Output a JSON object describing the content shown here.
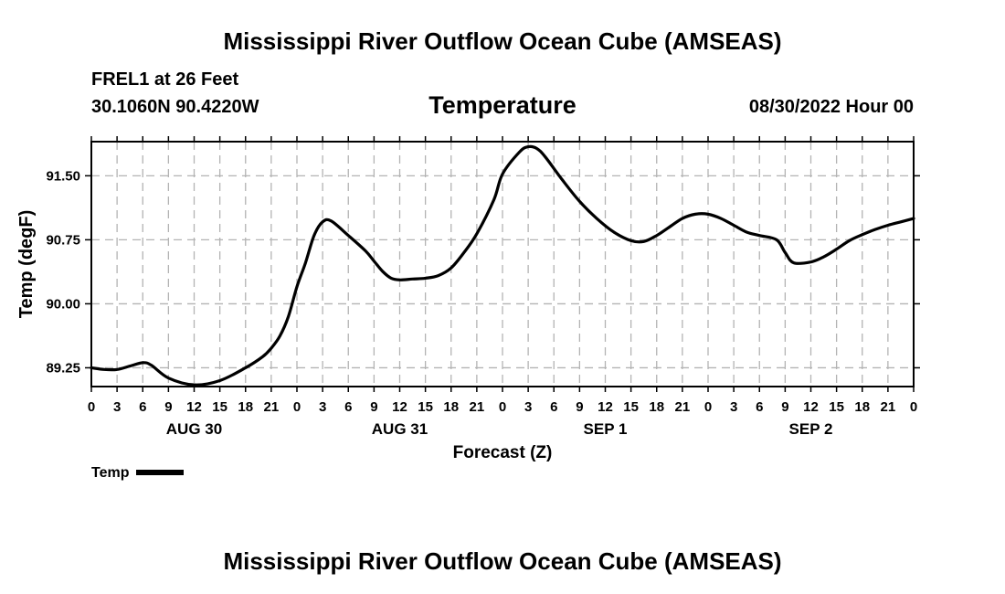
{
  "header": {
    "title": "Mississippi River Outflow Ocean Cube (AMSEAS)",
    "station": "FREL1 at 26 Feet",
    "coords": "30.1060N  90.4220W",
    "subtitle": "Temperature",
    "datetime": "08/30/2022 Hour 00"
  },
  "footer": {
    "title": "Mississippi River Outflow Ocean Cube (AMSEAS)"
  },
  "legend": {
    "label": "Temp"
  },
  "chart_data": {
    "type": "line",
    "title": "Temperature",
    "xlabel": "Forecast (Z)",
    "ylabel": "Temp (degF)",
    "xlim": [
      0,
      96
    ],
    "ylim": [
      89.03,
      91.9
    ],
    "y_ticks": [
      89.25,
      90.0,
      90.75,
      91.5
    ],
    "y_tick_labels": [
      "89.25",
      "90.00",
      "90.75",
      "91.50"
    ],
    "x_ticks": [
      0,
      3,
      6,
      9,
      12,
      15,
      18,
      21,
      24,
      27,
      30,
      33,
      36,
      39,
      42,
      45,
      48,
      51,
      54,
      57,
      60,
      63,
      66,
      69,
      72,
      75,
      78,
      81,
      84,
      87,
      90,
      93,
      96
    ],
    "x_tick_labels": [
      "0",
      "3",
      "6",
      "9",
      "12",
      "15",
      "18",
      "21",
      "0",
      "3",
      "6",
      "9",
      "12",
      "15",
      "18",
      "21",
      "0",
      "3",
      "6",
      "9",
      "12",
      "15",
      "18",
      "21",
      "0",
      "3",
      "6",
      "9",
      "12",
      "15",
      "18",
      "21",
      "0"
    ],
    "day_labels": [
      {
        "label": "AUG 30",
        "hour": 12
      },
      {
        "label": "AUG 31",
        "hour": 36
      },
      {
        "label": "SEP 1",
        "hour": 60
      },
      {
        "label": "SEP 2",
        "hour": 84
      }
    ],
    "grid": true,
    "series": [
      {
        "name": "Temp",
        "color": "#000000",
        "x": [
          0,
          1.5,
          3,
          4.5,
          6,
          7,
          9,
          12,
          15,
          18,
          20,
          21,
          22,
          23,
          24,
          25,
          26,
          27,
          28,
          30,
          32,
          33,
          34,
          35,
          36,
          37.5,
          39,
          40.5,
          42,
          43.5,
          45,
          47,
          48,
          50,
          51,
          52,
          53,
          55,
          57,
          59,
          61,
          63,
          64.5,
          66,
          67.5,
          69,
          70.5,
          72,
          73.5,
          75,
          76.5,
          78,
          80,
          81,
          82,
          84,
          85.5,
          87,
          88.5,
          90,
          91.5,
          93,
          94.5,
          96
        ],
        "values": [
          89.25,
          89.23,
          89.23,
          89.27,
          89.31,
          89.28,
          89.13,
          89.05,
          89.1,
          89.25,
          89.38,
          89.48,
          89.62,
          89.85,
          90.2,
          90.48,
          90.8,
          90.96,
          90.97,
          90.8,
          90.62,
          90.5,
          90.38,
          90.3,
          90.28,
          90.29,
          90.3,
          90.33,
          90.42,
          90.6,
          90.82,
          91.22,
          91.52,
          91.78,
          91.84,
          91.82,
          91.72,
          91.45,
          91.2,
          91.0,
          90.84,
          90.74,
          90.73,
          90.8,
          90.9,
          91.0,
          91.05,
          91.05,
          91.0,
          90.92,
          90.84,
          90.8,
          90.75,
          90.6,
          90.48,
          90.49,
          90.55,
          90.64,
          90.74,
          90.81,
          90.87,
          90.92,
          90.96,
          91.0
        ]
      }
    ]
  }
}
